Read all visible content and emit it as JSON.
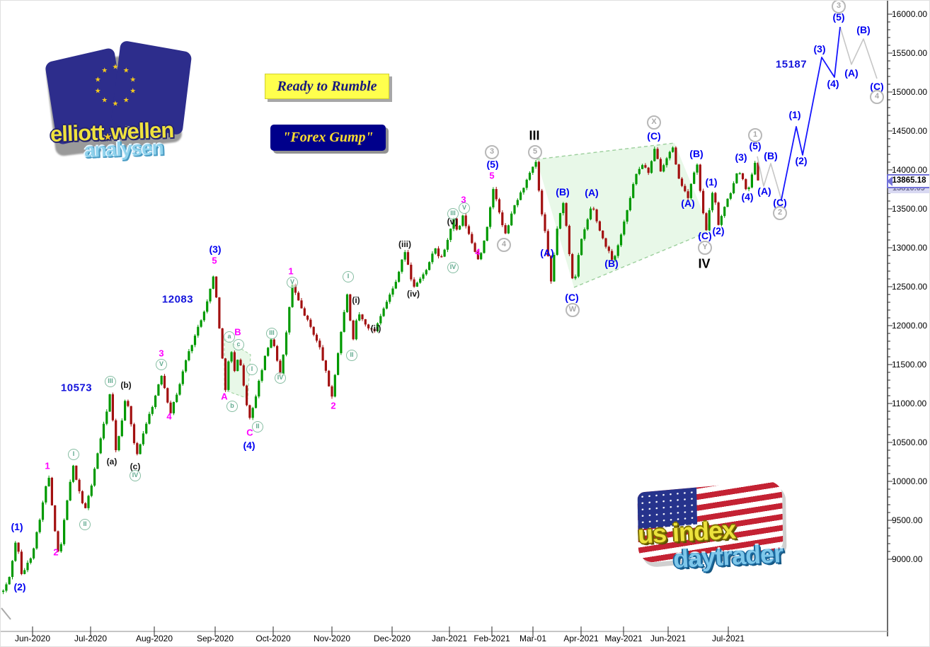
{
  "branding": {
    "ewa_logo": {
      "word1": "elliott",
      "word2": "wellen",
      "word3": "analysen",
      "star_char": "★",
      "star_count": 10
    },
    "banners": {
      "banner1": "Ready to Rumble",
      "banner2": "\"Forex Gump\""
    },
    "us_logo": {
      "word1": "us index",
      "word2": "daytrader"
    }
  },
  "price_tag": {
    "value": "13865.18",
    "behind_value": "13810.09"
  },
  "axes": {
    "price_labels": [
      [
        "16000.00",
        16000
      ],
      [
        "15500.00",
        15500
      ],
      [
        "15000.00",
        15000
      ],
      [
        "14500.00",
        14500
      ],
      [
        "14000.00",
        14000
      ],
      [
        "13500.00",
        13500
      ],
      [
        "13000.00",
        13000
      ],
      [
        "12500.00",
        12500
      ],
      [
        "12000.00",
        12000
      ],
      [
        "11500.00",
        11500
      ],
      [
        "11000.00",
        11000
      ],
      [
        "10500.00",
        10500
      ],
      [
        "10000.00",
        10000
      ],
      [
        "9500.00",
        9500
      ],
      [
        "9000.00",
        9000
      ]
    ],
    "time_labels": [
      [
        "Jun-2020",
        45
      ],
      [
        "Jul-2020",
        127
      ],
      [
        "Aug-2020",
        217
      ],
      [
        "Sep-2020",
        303
      ],
      [
        "Oct-2020",
        385
      ],
      [
        "Nov-2020",
        468
      ],
      [
        "Dec-2020",
        553
      ],
      [
        "Jan-2021",
        634
      ],
      [
        "Feb-2021",
        694
      ],
      [
        "Mar-01",
        752
      ],
      [
        "Apr-2021",
        820
      ],
      [
        "May-2021",
        880
      ],
      [
        "Jun-2021",
        943
      ],
      [
        "Jul-2021",
        1028
      ]
    ]
  },
  "wave_labels": [
    [
      "(1)",
      23,
      743,
      "b"
    ],
    [
      "(2)",
      27,
      828,
      "b"
    ],
    [
      "(3)",
      303,
      351,
      "b"
    ],
    [
      "(4)",
      351,
      628,
      "b"
    ],
    [
      "(5)",
      695,
      231,
      "b"
    ],
    [
      "(B)",
      794,
      270,
      "b"
    ],
    [
      "(A)",
      772,
      356,
      "b"
    ],
    [
      "(A)",
      835,
      271,
      "b"
    ],
    [
      "(C)",
      807,
      419,
      "b"
    ],
    [
      "(B)",
      863,
      371,
      "b"
    ],
    [
      "(C)",
      923,
      191,
      "b"
    ],
    [
      "(A)",
      971,
      286,
      "b"
    ],
    [
      "(B)",
      983,
      216,
      "b"
    ],
    [
      "(1)",
      1004,
      256,
      "b"
    ],
    [
      "(2)",
      1014,
      325,
      "b"
    ],
    [
      "(C)",
      995,
      332,
      "b"
    ],
    [
      "(3)",
      1046,
      221,
      "b"
    ],
    [
      "(4)",
      1055,
      277,
      "b"
    ],
    [
      "(5)",
      1066,
      205,
      "b"
    ],
    [
      "(A)",
      1079,
      269,
      "b"
    ],
    [
      "(B)",
      1088,
      219,
      "b"
    ],
    [
      "(C)",
      1101,
      285,
      "b"
    ],
    [
      "(1)",
      1122,
      161,
      "b"
    ],
    [
      "(2)",
      1131,
      226,
      "b"
    ],
    [
      "(3)",
      1157,
      68,
      "b"
    ],
    [
      "(4)",
      1176,
      117,
      "b"
    ],
    [
      "(5)",
      1184,
      23,
      "b"
    ],
    [
      "(A)",
      1202,
      102,
      "b"
    ],
    [
      "(B)",
      1219,
      41,
      "b"
    ],
    [
      "(C)",
      1238,
      121,
      "b"
    ],
    [
      "10573",
      107,
      547,
      "B"
    ],
    [
      "12083",
      250,
      422,
      "B"
    ],
    [
      "15187",
      1117,
      90,
      "B"
    ],
    [
      "1",
      66,
      657,
      "m"
    ],
    [
      "2",
      78,
      779,
      "m"
    ],
    [
      "3",
      227,
      498,
      "m"
    ],
    [
      "4",
      238,
      587,
      "m"
    ],
    [
      "5",
      302,
      367,
      "m"
    ],
    [
      "B",
      335,
      468,
      "m"
    ],
    [
      "A",
      316,
      559,
      "m"
    ],
    [
      "C",
      352,
      610,
      "m"
    ],
    [
      "1",
      410,
      382,
      "m"
    ],
    [
      "2",
      470,
      572,
      "m"
    ],
    [
      "3",
      654,
      281,
      "m"
    ],
    [
      "4",
      674,
      355,
      "m"
    ],
    [
      "5",
      694,
      247,
      "m"
    ],
    [
      "(a)",
      157,
      651,
      "k"
    ],
    [
      "(b)",
      177,
      543,
      "k"
    ],
    [
      "(c)",
      190,
      658,
      "k"
    ],
    [
      "(i)",
      502,
      423,
      "k"
    ],
    [
      "(ii)",
      530,
      463,
      "k"
    ],
    [
      "(iii)",
      571,
      344,
      "k"
    ],
    [
      "(iv)",
      583,
      414,
      "k"
    ],
    [
      "(v)",
      638,
      312,
      "k"
    ],
    [
      "III",
      754,
      191,
      "K"
    ],
    [
      "IV",
      994,
      372,
      "K"
    ],
    [
      "I",
      103,
      641,
      "g"
    ],
    [
      "II",
      119,
      740,
      "g"
    ],
    [
      "III",
      155,
      538,
      "g"
    ],
    [
      "IV",
      190,
      671,
      "g"
    ],
    [
      "V",
      227,
      514,
      "g"
    ],
    [
      "a",
      323,
      475,
      "g"
    ],
    [
      "c",
      336,
      486,
      "g"
    ],
    [
      "b",
      327,
      573,
      "g"
    ],
    [
      "I",
      355,
      521,
      "g"
    ],
    [
      "II",
      363,
      602,
      "g"
    ],
    [
      "III",
      383,
      470,
      "g"
    ],
    [
      "IV",
      395,
      533,
      "g"
    ],
    [
      "V",
      412,
      398,
      "g"
    ],
    [
      "I",
      491,
      390,
      "g"
    ],
    [
      "II",
      496,
      501,
      "g"
    ],
    [
      "III",
      639,
      301,
      "g"
    ],
    [
      "V",
      655,
      293,
      "g"
    ],
    [
      "IV",
      639,
      377,
      "g"
    ],
    [
      "3",
      694,
      214,
      "y"
    ],
    [
      "5",
      755,
      214,
      "y"
    ],
    [
      "4",
      711,
      345,
      "y"
    ],
    [
      "W",
      808,
      437,
      "y"
    ],
    [
      "X",
      923,
      172,
      "y"
    ],
    [
      "Y",
      995,
      349,
      "y"
    ],
    [
      "1",
      1066,
      190,
      "y"
    ],
    [
      "2",
      1101,
      300,
      "y"
    ],
    [
      "3",
      1184,
      8,
      "y"
    ],
    [
      "4",
      1238,
      136,
      "y"
    ]
  ],
  "chart_data": {
    "type": "candlestick",
    "y_axis": {
      "min": 9000,
      "max": 16000,
      "step": 500,
      "minor_step": 100
    },
    "x_axis_labels": [
      "Jun-2020",
      "Jul-2020",
      "Aug-2020",
      "Sep-2020",
      "Oct-2020",
      "Nov-2020",
      "Dec-2020",
      "Jan-2021",
      "Feb-2021",
      "Mar-01",
      "Apr-2021",
      "May-2021",
      "Jun-2021",
      "Jul-2021"
    ],
    "last_price": 13865.18,
    "key_level_annotations": [
      10573,
      12083,
      15187
    ],
    "path_waypoints": [
      [
        2,
        8555
      ],
      [
        12,
        8736
      ],
      [
        23,
        9291
      ],
      [
        30,
        8791
      ],
      [
        45,
        9064
      ],
      [
        56,
        9536
      ],
      [
        68,
        10100
      ],
      [
        75,
        9500
      ],
      [
        83,
        8991
      ],
      [
        93,
        9700
      ],
      [
        103,
        10191
      ],
      [
        111,
        9900
      ],
      [
        119,
        9609
      ],
      [
        130,
        10000
      ],
      [
        140,
        10491
      ],
      [
        148,
        10800
      ],
      [
        156,
        11182
      ],
      [
        162,
        10336
      ],
      [
        170,
        10700
      ],
      [
        178,
        11127
      ],
      [
        185,
        10700
      ],
      [
        192,
        10309
      ],
      [
        205,
        10718
      ],
      [
        216,
        11000
      ],
      [
        228,
        11373
      ],
      [
        240,
        10873
      ],
      [
        252,
        11200
      ],
      [
        262,
        11555
      ],
      [
        280,
        11991
      ],
      [
        292,
        12300
      ],
      [
        302,
        12673
      ],
      [
        310,
        11900
      ],
      [
        318,
        11191
      ],
      [
        325,
        11745
      ],
      [
        331,
        11400
      ],
      [
        337,
        11654
      ],
      [
        346,
        11082
      ],
      [
        353,
        10782
      ],
      [
        365,
        11264
      ],
      [
        374,
        11600
      ],
      [
        384,
        11873
      ],
      [
        390,
        11600
      ],
      [
        396,
        11373
      ],
      [
        404,
        11900
      ],
      [
        412,
        12536
      ],
      [
        424,
        12245
      ],
      [
        438,
        11991
      ],
      [
        452,
        11700
      ],
      [
        460,
        11400
      ],
      [
        468,
        11064
      ],
      [
        481,
        11900
      ],
      [
        491,
        12464
      ],
      [
        497,
        11718
      ],
      [
        505,
        12173
      ],
      [
        516,
        12009
      ],
      [
        528,
        11918
      ],
      [
        542,
        12245
      ],
      [
        558,
        12536
      ],
      [
        571,
        12973
      ],
      [
        583,
        12491
      ],
      [
        596,
        12627
      ],
      [
        606,
        12800
      ],
      [
        614,
        13000
      ],
      [
        622,
        12836
      ],
      [
        632,
        13100
      ],
      [
        640,
        13382
      ],
      [
        646,
        13182
      ],
      [
        653,
        13409
      ],
      [
        665,
        13091
      ],
      [
        676,
        12827
      ],
      [
        688,
        13264
      ],
      [
        697,
        13791
      ],
      [
        705,
        13445
      ],
      [
        713,
        13155
      ],
      [
        726,
        13536
      ],
      [
        740,
        13791
      ],
      [
        750,
        13991
      ],
      [
        757,
        14100
      ],
      [
        763,
        13536
      ],
      [
        770,
        13173
      ],
      [
        778,
        12555
      ],
      [
        788,
        13355
      ],
      [
        796,
        13582
      ],
      [
        803,
        12991
      ],
      [
        810,
        12491
      ],
      [
        819,
        13036
      ],
      [
        828,
        13309
      ],
      [
        836,
        13564
      ],
      [
        845,
        13264
      ],
      [
        855,
        13036
      ],
      [
        866,
        12827
      ],
      [
        877,
        13173
      ],
      [
        888,
        13582
      ],
      [
        898,
        13945
      ],
      [
        908,
        14082
      ],
      [
        916,
        13945
      ],
      [
        925,
        14291
      ],
      [
        933,
        13991
      ],
      [
        941,
        14155
      ],
      [
        950,
        14282
      ],
      [
        958,
        13882
      ],
      [
        966,
        13764
      ],
      [
        972,
        13627
      ],
      [
        978,
        13900
      ],
      [
        984,
        14100
      ],
      [
        990,
        13627
      ],
      [
        997,
        13218
      ],
      [
        1003,
        13536
      ],
      [
        1008,
        13791
      ],
      [
        1012,
        13445
      ],
      [
        1015,
        13282
      ],
      [
        1022,
        13491
      ],
      [
        1032,
        13718
      ],
      [
        1043,
        14009
      ],
      [
        1050,
        13855
      ],
      [
        1056,
        13700
      ],
      [
        1062,
        13945
      ],
      [
        1068,
        14173
      ],
      [
        1072,
        13865
      ]
    ],
    "projection_gray_entry": [
      [
        1069,
        14173
      ],
      [
        1078,
        13791
      ],
      [
        1088,
        14082
      ],
      [
        1103,
        13618
      ]
    ],
    "projection_blue": [
      [
        1103,
        13618
      ],
      [
        1124,
        14555
      ],
      [
        1133,
        14191
      ],
      [
        1160,
        15445
      ],
      [
        1178,
        15191
      ],
      [
        1186,
        15836
      ]
    ],
    "projection_gray_exit": [
      [
        1186,
        15836
      ],
      [
        1202,
        15355
      ],
      [
        1219,
        15682
      ],
      [
        1238,
        15173
      ]
    ],
    "triangle_polygon": [
      [
        757,
        14136
      ],
      [
        952,
        14345
      ],
      [
        1003,
        13218
      ],
      [
        810,
        12491
      ]
    ],
    "flag_polygon": [
      [
        316,
        11836
      ],
      [
        353,
        11627
      ],
      [
        349,
        11064
      ],
      [
        316,
        11173
      ]
    ]
  },
  "colors": {
    "up": "#009900",
    "down": "#a21010",
    "blue_label": "#0000f2",
    "magenta_label": "#ff00ff",
    "circle_green": "#5fa98e",
    "circle_gray": "#ababab",
    "projection_blue": "#1515ff",
    "projection_gray": "#c6c6c6",
    "shade_green_fill": "rgba(204,240,204,0.45)",
    "shade_green_edge": "#9ccf9c",
    "axis_line": "#2a2a2a",
    "grid_border": "#b4b4b4"
  }
}
